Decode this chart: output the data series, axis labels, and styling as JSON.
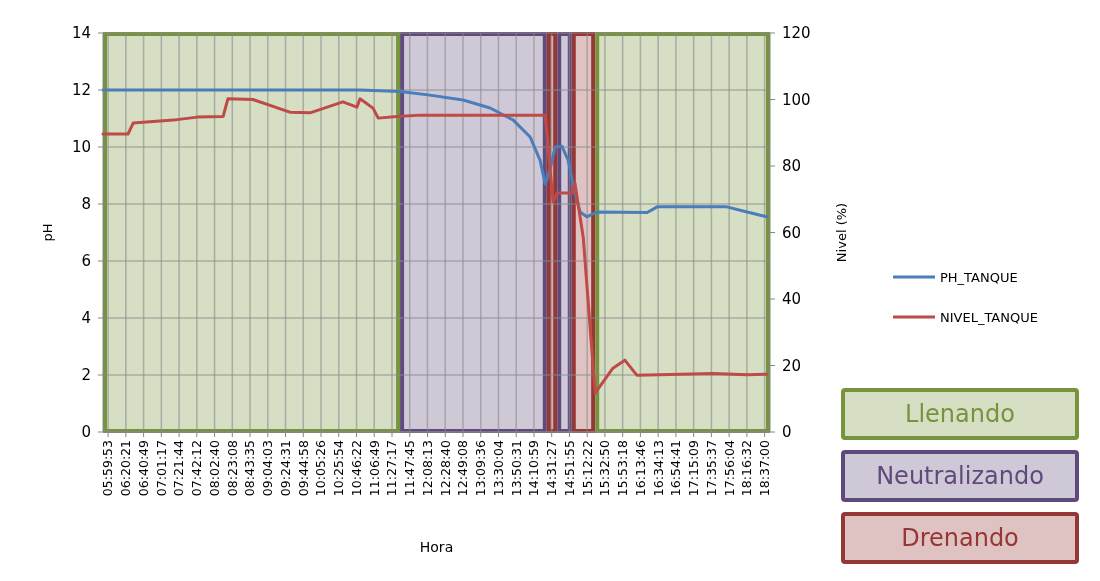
{
  "chart_data": {
    "type": "line",
    "xlabel": "Hora",
    "ylabel": "pH",
    "y2label": "Nivel (%)",
    "xlim": [
      5.9,
      18.72
    ],
    "xticks": [
      {
        "value": 5.9981,
        "label": "05:59:53"
      },
      {
        "value": 6.3392,
        "label": "06:20:21"
      },
      {
        "value": 6.6803,
        "label": "06:40:49"
      },
      {
        "value": 7.0214,
        "label": "07:01:17"
      },
      {
        "value": 7.3622,
        "label": "07:21:44"
      },
      {
        "value": 7.7033,
        "label": "07:42:12"
      },
      {
        "value": 8.0444,
        "label": "08:02:40"
      },
      {
        "value": 8.3856,
        "label": "08:23:08"
      },
      {
        "value": 8.7264,
        "label": "08:43:35"
      },
      {
        "value": 9.0675,
        "label": "09:04:03"
      },
      {
        "value": 9.4086,
        "label": "09:24:31"
      },
      {
        "value": 9.7494,
        "label": "09:44:58"
      },
      {
        "value": 10.0906,
        "label": "10:05:26"
      },
      {
        "value": 10.4317,
        "label": "10:25:54"
      },
      {
        "value": 10.7728,
        "label": "10:46:22"
      },
      {
        "value": 11.1136,
        "label": "11:06:49"
      },
      {
        "value": 11.4547,
        "label": "11:27:17"
      },
      {
        "value": 11.7958,
        "label": "11:47:45"
      },
      {
        "value": 12.1369,
        "label": "12:08:13"
      },
      {
        "value": 12.4778,
        "label": "12:28:40"
      },
      {
        "value": 12.8189,
        "label": "12:49:08"
      },
      {
        "value": 13.16,
        "label": "13:09:36"
      },
      {
        "value": 13.5011,
        "label": "13:30:04"
      },
      {
        "value": 13.8419,
        "label": "13:50:31"
      },
      {
        "value": 14.1831,
        "label": "14:10:59"
      },
      {
        "value": 14.5242,
        "label": "14:31:27"
      },
      {
        "value": 14.8653,
        "label": "14:51:55"
      },
      {
        "value": 15.2061,
        "label": "15:12:22"
      },
      {
        "value": 15.5472,
        "label": "15:32:50"
      },
      {
        "value": 15.8883,
        "label": "15:53:18"
      },
      {
        "value": 16.2294,
        "label": "16:13:46"
      },
      {
        "value": 16.5703,
        "label": "16:34:13"
      },
      {
        "value": 16.9114,
        "label": "16:54:41"
      },
      {
        "value": 17.2525,
        "label": "17:15:09"
      },
      {
        "value": 17.5936,
        "label": "17:35:37"
      },
      {
        "value": 17.9344,
        "label": "17:56:04"
      },
      {
        "value": 18.2756,
        "label": "18:16:32"
      },
      {
        "value": 18.6167,
        "label": "18:37:00"
      }
    ],
    "ylim": [
      0,
      14
    ],
    "yticks": [
      0,
      2,
      4,
      6,
      8,
      10,
      12,
      14
    ],
    "y2lim": [
      0,
      120
    ],
    "y2ticks": [
      0,
      20,
      40,
      60,
      80,
      100,
      120
    ],
    "grid": true,
    "legend": "right",
    "bands": [
      {
        "axis": "x",
        "from": 5.9,
        "to": 11.61,
        "label": "Llenando",
        "color": "#77933c"
      },
      {
        "axis": "x",
        "from": 11.61,
        "to": 14.43,
        "label": "Neutralizando",
        "color": "#604a7b"
      },
      {
        "axis": "x",
        "from": 14.43,
        "to": 14.63,
        "label": "Drenando",
        "color": "#953735"
      },
      {
        "axis": "x",
        "from": 14.63,
        "to": 14.91,
        "label": null,
        "color": "#604a7b"
      },
      {
        "axis": "x",
        "from": 14.91,
        "to": 15.36,
        "label": null,
        "color": "#953735"
      },
      {
        "axis": "x",
        "from": 15.36,
        "to": 18.72,
        "label": null,
        "color": "#77933c"
      }
    ],
    "series": [
      {
        "name": "PH_TANQUE",
        "color": "#4a7ebb",
        "x": [
          5.9,
          6.035,
          6.42,
          7.76,
          9.69,
          10.84,
          11.61,
          12.18,
          12.82,
          13.34,
          13.78,
          14.11,
          14.3,
          14.4,
          14.49,
          14.59,
          14.72,
          14.84,
          14.97,
          15.07,
          15.2,
          15.39,
          16.36,
          16.55,
          17.62,
          17.89,
          18.28,
          18.66
        ],
        "values": [
          12.0,
          12.0,
          12.0,
          12.0,
          12.0,
          12.0,
          11.95,
          11.82,
          11.65,
          11.37,
          10.95,
          10.35,
          9.54,
          8.7,
          9.2,
          10.0,
          10.03,
          9.54,
          8.38,
          7.72,
          7.55,
          7.72,
          7.7,
          7.9,
          7.9,
          7.9,
          7.72,
          7.55
        ]
      },
      {
        "name": "NIVEL_TANQUE",
        "color": "#be4b48",
        "axis": "y2",
        "x": [
          5.9,
          6.38,
          6.48,
          7.25,
          7.71,
          8.21,
          8.3,
          8.78,
          9.49,
          9.88,
          10.21,
          10.51,
          10.78,
          10.84,
          11.09,
          11.19,
          11.55,
          12.0,
          12.95,
          13.91,
          14.4,
          14.43,
          14.55,
          14.63,
          14.91,
          14.97,
          15.13,
          15.36,
          15.7,
          15.93,
          16.16,
          17.62,
          18.28,
          18.66
        ],
        "values": [
          89.6,
          89.6,
          92.9,
          93.8,
          94.7,
          94.9,
          100.2,
          100.0,
          96.2,
          96.0,
          97.7,
          99.3,
          97.7,
          100.2,
          97.4,
          94.4,
          94.9,
          95.3,
          95.3,
          95.3,
          95.3,
          90,
          69.2,
          71.9,
          71.9,
          74.9,
          58.6,
          11.7,
          19.2,
          21.6,
          17.1,
          17.6,
          17.2,
          17.4
        ]
      }
    ]
  }
}
